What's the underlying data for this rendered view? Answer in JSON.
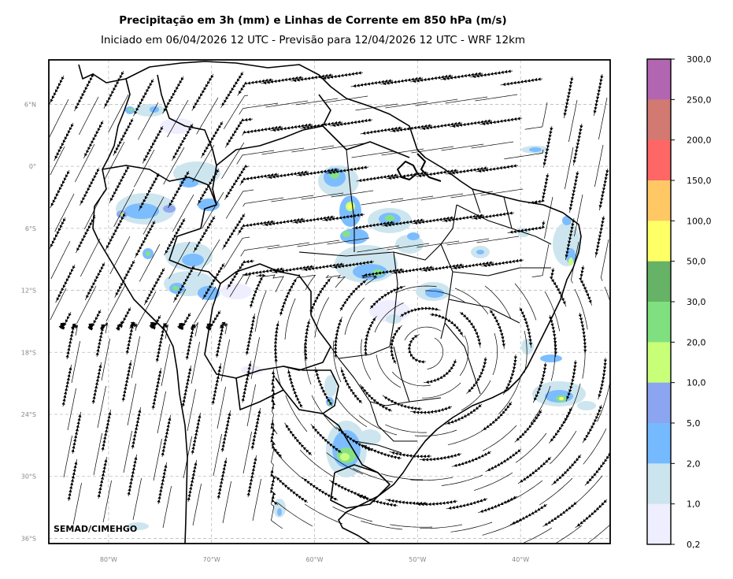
{
  "header": {
    "title": "Precipitação em 3h (mm) e Linhas de Corrente em 850 hPa (m/s)",
    "subtitle": "Iniciado em 06/04/2026 12 UTC - Previsão para 12/04/2026 12 UTC - WRF 12km"
  },
  "map": {
    "credit": "SEMAD/CIMEHGO",
    "lat_labels": [
      "6°N",
      "0°",
      "6°S",
      "12°S",
      "18°S",
      "24°S",
      "30°S",
      "36°S"
    ],
    "lon_labels": [
      "80°W",
      "70°W",
      "60°W",
      "50°W",
      "40°W"
    ],
    "lat_values": [
      6,
      0,
      -6,
      -12,
      -18,
      -24,
      -30,
      -36
    ],
    "lon_values": [
      -80,
      -70,
      -60,
      -50,
      -40
    ],
    "extent": {
      "lon_min": -85.8,
      "lon_max": -31.3,
      "lat_min": -36.5,
      "lat_max": 10.3
    },
    "grid": true,
    "grid_color": "#bbbbbb"
  },
  "colorbar": {
    "labels": [
      "300,0",
      "250,0",
      "200,0",
      "150,0",
      "100,0",
      "50,0",
      "30,0",
      "20,0",
      "10,0",
      "5,0",
      "2,0",
      "1,0",
      "0,2"
    ],
    "colors": [
      "#b266b2",
      "#d27a72",
      "#ff6666",
      "#ffc865",
      "#ffff66",
      "#66b266",
      "#80e080",
      "#c8ff78",
      "#8ca5f0",
      "#75baff",
      "#cbe4ee",
      "#eeeeff"
    ]
  }
}
